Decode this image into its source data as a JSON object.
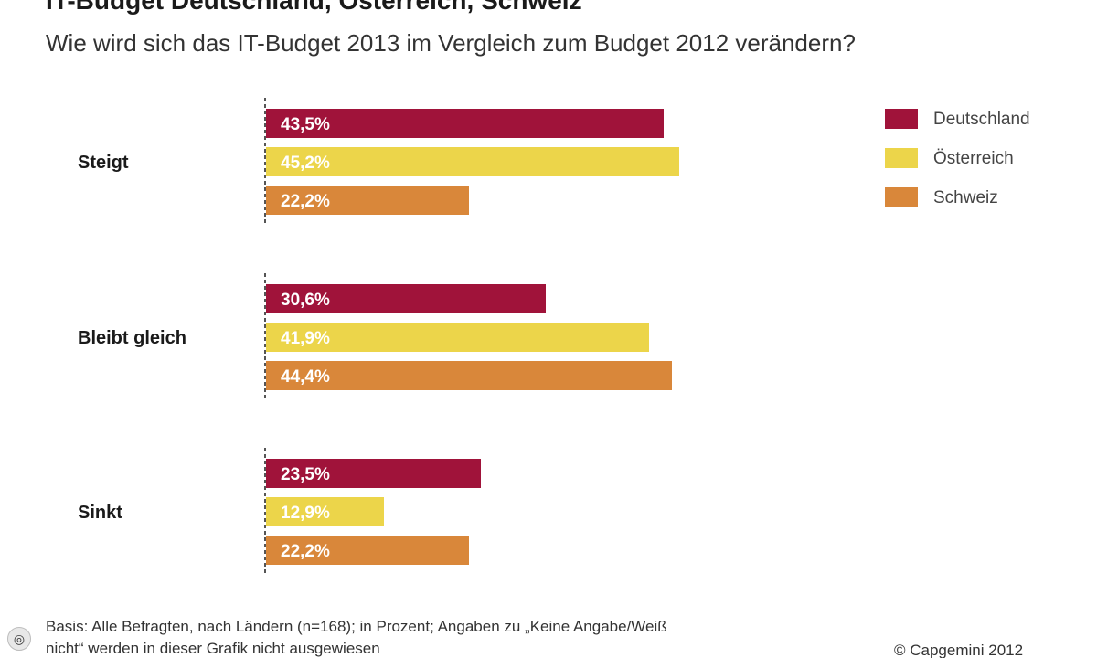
{
  "header": {
    "title": "IT-Budget Deutschland, Österreich, Schweiz",
    "subtitle": "Wie wird sich das IT-Budget 2013 im Vergleich zum Budget 2012 verändern?"
  },
  "footer": {
    "note_line1": "Basis: Alle Befragten, nach Ländern (n=168); in Prozent; Angaben zu „Keine Angabe/Weiß",
    "note_line2": "nicht“ werden in dieser Grafik nicht ausgewiesen",
    "copyright": "© Capgemini 2012",
    "badge_icon": "info-badge-icon",
    "badge_glyph": "◎"
  },
  "chart_data": {
    "type": "bar",
    "orientation": "horizontal",
    "title": "IT-Budget Deutschland, Österreich, Schweiz",
    "subtitle": "Wie wird sich das IT-Budget 2013 im Vergleich zum Budget 2012 verändern?",
    "categories": [
      "Steigt",
      "Bleibt gleich",
      "Sinkt"
    ],
    "series": [
      {
        "name": "Deutschland",
        "color": "#a0133a",
        "values": [
          43.5,
          30.6,
          23.5
        ],
        "labels": [
          "43,5%",
          "30,6%",
          "23,5%"
        ]
      },
      {
        "name": "Österreich",
        "color": "#ecd54a",
        "values": [
          45.2,
          41.9,
          12.9
        ],
        "labels": [
          "45,2%",
          "41,9%",
          "12,9%"
        ]
      },
      {
        "name": "Schweiz",
        "color": "#d9873a",
        "values": [
          22.2,
          44.4,
          22.2
        ],
        "labels": [
          "22,2%",
          "44,4%",
          "22,2%"
        ]
      }
    ],
    "xlim": [
      0,
      50
    ],
    "unit": "%",
    "grid": false,
    "legend_position": "top-right",
    "axis_style": "dashed baseline"
  }
}
